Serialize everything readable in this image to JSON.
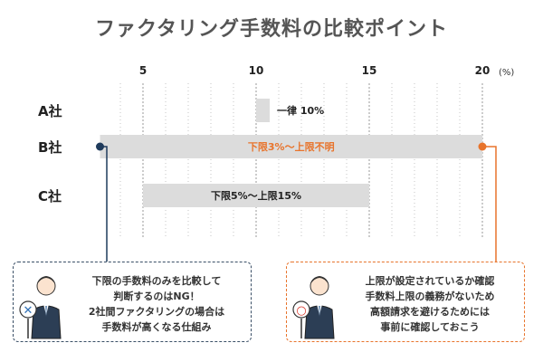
{
  "title": "ファクタリング手数料の比較ポイント",
  "unit": "(%)",
  "chart_data": {
    "type": "bar",
    "subtype": "floating-range",
    "x_ticks": [
      5,
      10,
      15,
      20
    ],
    "xlim": [
      4,
      21
    ],
    "grid": true,
    "rows": [
      {
        "company": "A社",
        "start": 10,
        "end": 10.6,
        "label": "一律 10%",
        "color": "#dcdcdc",
        "label_color": "#222222",
        "label_position": "right"
      },
      {
        "company": "B社",
        "start": 3.1,
        "end": 20,
        "label": "下限3%〜上限不明",
        "color": "#dcdcdc",
        "label_color": "#e8742c",
        "label_position": "center",
        "markers": true
      },
      {
        "company": "C社",
        "start": 5,
        "end": 15,
        "label": "下限5%〜上限15%",
        "color": "#dcdcdc",
        "label_color": "#222222",
        "label_position": "center"
      }
    ]
  },
  "colors": {
    "left_accent": "#1f3b5c",
    "right_accent": "#e8742c"
  },
  "callouts": {
    "left": {
      "lines": [
        "下限の手数料のみを比較して",
        "判断するのはNG！",
        "2社間ファクタリングの場合は",
        "手数料が高くなる仕組み"
      ],
      "sign": "✕"
    },
    "right": {
      "lines": [
        "上限が設定されているか確認",
        "手数料上限の義務がないため",
        "高額請求を避けるためには",
        "事前に確認しておこう"
      ],
      "sign": "○"
    }
  }
}
